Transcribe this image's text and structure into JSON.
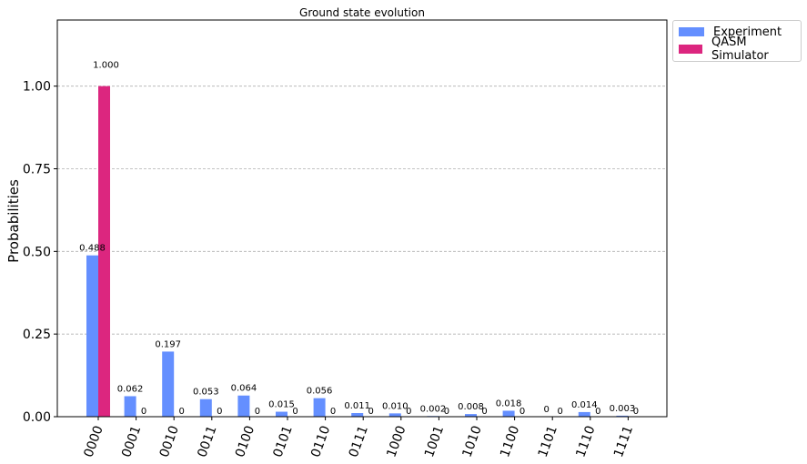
{
  "chart_data": {
    "type": "bar",
    "title": "Ground state evolution",
    "ylabel": "Probabilities",
    "xlabel": "",
    "ylim": [
      0,
      1.2
    ],
    "yticks": [
      "0.00",
      "0.25",
      "0.50",
      "0.75",
      "1.00"
    ],
    "grid": "horizontal-dashed",
    "legend_position": "outside-top-right",
    "categories": [
      "0000",
      "0001",
      "0010",
      "0011",
      "0100",
      "0101",
      "0110",
      "0111",
      "1000",
      "1001",
      "1010",
      "1100",
      "1101",
      "1110",
      "1111"
    ],
    "series": [
      {
        "name": "Experiment",
        "color": "#648fff",
        "values": [
          0.488,
          0.062,
          0.197,
          0.053,
          0.064,
          0.015,
          0.056,
          0.011,
          0.01,
          0.002,
          0.008,
          0.018,
          0,
          0.014,
          0.003
        ],
        "labels": [
          "0.488",
          "0.062",
          "0.197",
          "0.053",
          "0.064",
          "0.015",
          "0.056",
          "0.011",
          "0.010",
          "0.002",
          "0.008",
          "0.018",
          "0",
          "0.014",
          "0.003"
        ]
      },
      {
        "name": "QASM Simulator",
        "color": "#dc267f",
        "values": [
          1.0,
          0,
          0,
          0,
          0,
          0,
          0,
          0,
          0,
          0,
          0,
          0,
          0,
          0,
          0
        ],
        "labels": [
          "1.000",
          "0",
          "0",
          "0",
          "0",
          "0",
          "0",
          "0",
          "0",
          "0",
          "0",
          "0",
          "0",
          "0",
          "0"
        ]
      }
    ]
  }
}
